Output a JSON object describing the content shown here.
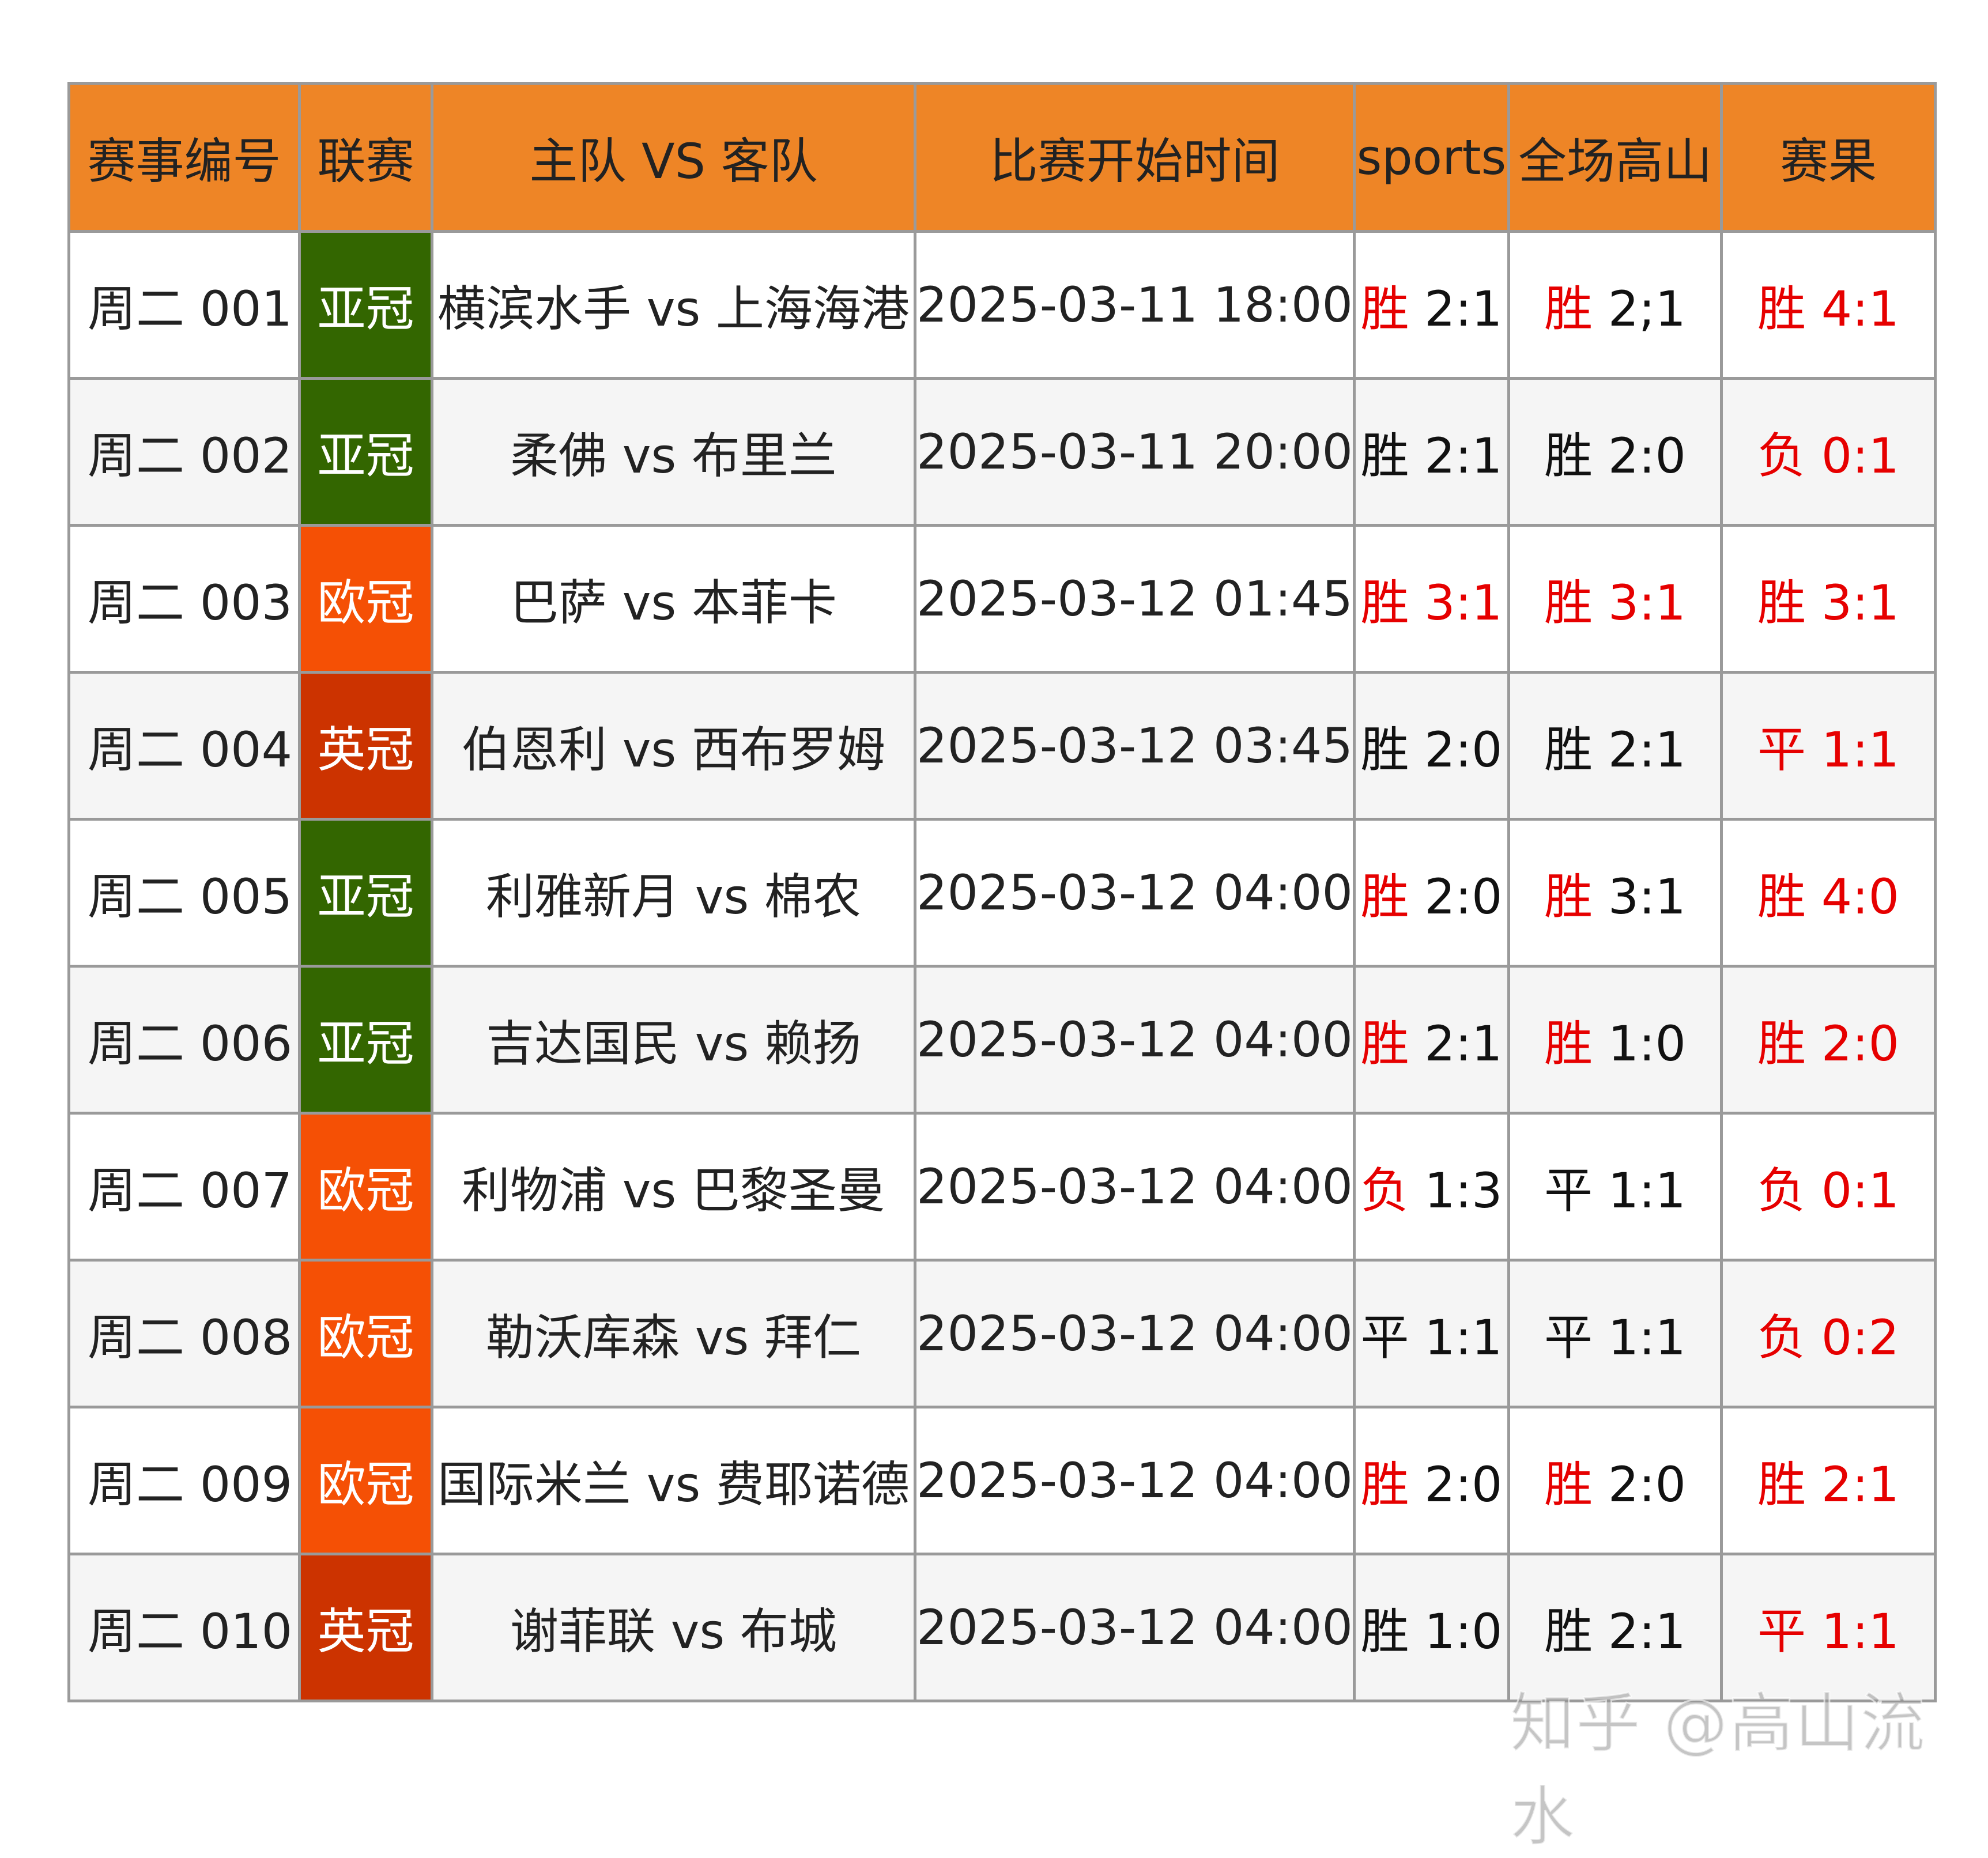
{
  "colors": {
    "header_bg": "#ee8526",
    "border": "#9a9a9a",
    "highlight": "#e60000",
    "league": {
      "亚冠": "#336600",
      "欧冠": "#f55005",
      "英冠": "#cc3300"
    }
  },
  "headers": [
    "赛事编号",
    "联赛",
    "主队 VS 客队",
    "比赛开始时间",
    "sports",
    "全场高山",
    "赛果"
  ],
  "rows": [
    {
      "id": "周二 001",
      "league": "亚冠",
      "match": "横滨水手 vs 上海海港",
      "time": "2025-03-11 18:00",
      "sports": {
        "outcome": "胜",
        "score": "2:1",
        "outcome_red": true,
        "score_red": false
      },
      "gaoshan": {
        "outcome": "胜",
        "score": "2;1",
        "outcome_red": true,
        "score_red": false
      },
      "result": "胜 4:1"
    },
    {
      "id": "周二 002",
      "league": "亚冠",
      "match": "柔佛 vs 布里兰",
      "time": "2025-03-11 20:00",
      "sports": {
        "outcome": "胜",
        "score": "2:1",
        "outcome_red": false,
        "score_red": false
      },
      "gaoshan": {
        "outcome": "胜",
        "score": "2:0",
        "outcome_red": false,
        "score_red": false
      },
      "result": "负 0:1"
    },
    {
      "id": "周二 003",
      "league": "欧冠",
      "match": "巴萨 vs 本菲卡",
      "time": "2025-03-12 01:45",
      "sports": {
        "outcome": "胜",
        "score": "3:1",
        "outcome_red": true,
        "score_red": true
      },
      "gaoshan": {
        "outcome": "胜",
        "score": "3:1",
        "outcome_red": true,
        "score_red": true
      },
      "result": "胜 3:1"
    },
    {
      "id": "周二 004",
      "league": "英冠",
      "match": "伯恩利 vs 西布罗姆",
      "time": "2025-03-12 03:45",
      "sports": {
        "outcome": "胜",
        "score": "2:0",
        "outcome_red": false,
        "score_red": false
      },
      "gaoshan": {
        "outcome": "胜",
        "score": "2:1",
        "outcome_red": false,
        "score_red": false
      },
      "result": "平 1:1"
    },
    {
      "id": "周二 005",
      "league": "亚冠",
      "match": "利雅新月 vs 棉农",
      "time": "2025-03-12 04:00",
      "sports": {
        "outcome": "胜",
        "score": "2:0",
        "outcome_red": true,
        "score_red": false
      },
      "gaoshan": {
        "outcome": "胜",
        "score": "3:1",
        "outcome_red": true,
        "score_red": false
      },
      "result": "胜 4:0"
    },
    {
      "id": "周二 006",
      "league": "亚冠",
      "match": "吉达国民 vs 赖扬",
      "time": "2025-03-12 04:00",
      "sports": {
        "outcome": "胜",
        "score": "2:1",
        "outcome_red": true,
        "score_red": false
      },
      "gaoshan": {
        "outcome": "胜",
        "score": "1:0",
        "outcome_red": true,
        "score_red": false
      },
      "result": "胜 2:0"
    },
    {
      "id": "周二 007",
      "league": "欧冠",
      "match": "利物浦 vs 巴黎圣曼",
      "time": "2025-03-12 04:00",
      "sports": {
        "outcome": "负",
        "score": "1:3",
        "outcome_red": true,
        "score_red": false
      },
      "gaoshan": {
        "outcome": "平",
        "score": "1:1",
        "outcome_red": false,
        "score_red": false
      },
      "result": "负 0:1"
    },
    {
      "id": "周二 008",
      "league": "欧冠",
      "match": "勒沃库森 vs 拜仁",
      "time": "2025-03-12 04:00",
      "sports": {
        "outcome": "平",
        "score": "1:1",
        "outcome_red": false,
        "score_red": false
      },
      "gaoshan": {
        "outcome": "平",
        "score": "1:1",
        "outcome_red": false,
        "score_red": false
      },
      "result": "负 0:2"
    },
    {
      "id": "周二 009",
      "league": "欧冠",
      "match": "国际米兰 vs 费耶诺德",
      "time": "2025-03-12 04:00",
      "sports": {
        "outcome": "胜",
        "score": "2:0",
        "outcome_red": true,
        "score_red": false
      },
      "gaoshan": {
        "outcome": "胜",
        "score": "2:0",
        "outcome_red": true,
        "score_red": false
      },
      "result": "胜 2:1"
    },
    {
      "id": "周二 010",
      "league": "英冠",
      "match": "谢菲联 vs 布城",
      "time": "2025-03-12 04:00",
      "sports": {
        "outcome": "胜",
        "score": "1:0",
        "outcome_red": false,
        "score_red": false
      },
      "gaoshan": {
        "outcome": "胜",
        "score": "2:1",
        "outcome_red": false,
        "score_red": false
      },
      "result": "平 1:1"
    }
  ],
  "watermark": "知乎 @高山流水"
}
